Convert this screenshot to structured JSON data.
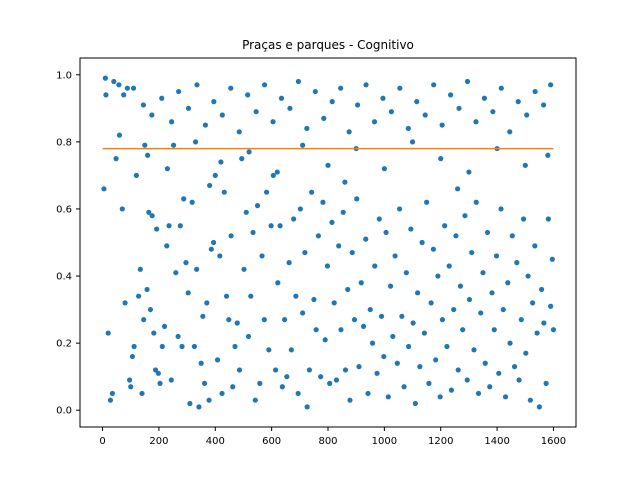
{
  "chart_data": {
    "type": "scatter",
    "title": "Praças e parques - Cognitivo",
    "xlabel": "",
    "ylabel": "",
    "xlim": [
      -80,
      1680
    ],
    "ylim": [
      -0.05,
      1.05
    ],
    "x_ticks": [
      0,
      200,
      400,
      600,
      800,
      1000,
      1200,
      1400,
      1600
    ],
    "x_tick_labels": [
      "0",
      "200",
      "400",
      "600",
      "800",
      "1000",
      "1200",
      "1400",
      "1600"
    ],
    "y_ticks": [
      0.0,
      0.2,
      0.4,
      0.6,
      0.8,
      1.0
    ],
    "y_tick_labels": [
      "0.0",
      "0.2",
      "0.4",
      "0.6",
      "0.8",
      "1.0"
    ],
    "grid": false,
    "series": [
      {
        "kind": "scatter",
        "color": "#1f77b4",
        "points": [
          [
            5,
            0.66
          ],
          [
            12,
            0.94
          ],
          [
            20,
            0.23
          ],
          [
            28,
            0.03
          ],
          [
            35,
            0.05
          ],
          [
            48,
            0.75
          ],
          [
            58,
            0.97
          ],
          [
            70,
            0.6
          ],
          [
            80,
            0.32
          ],
          [
            88,
            0.96
          ],
          [
            96,
            0.09
          ],
          [
            100,
            0.07
          ],
          [
            106,
            0.16
          ],
          [
            112,
            0.19
          ],
          [
            120,
            0.7
          ],
          [
            128,
            0.34
          ],
          [
            134,
            0.42
          ],
          [
            140,
            0.05
          ],
          [
            146,
            0.27
          ],
          [
            150,
            0.79
          ],
          [
            158,
            0.36
          ],
          [
            164,
            0.59
          ],
          [
            170,
            0.3
          ],
          [
            176,
            0.58
          ],
          [
            182,
            0.23
          ],
          [
            188,
            0.12
          ],
          [
            192,
            0.54
          ],
          [
            198,
            0.11
          ],
          [
            204,
            0.08
          ],
          [
            212,
            0.19
          ],
          [
            220,
            0.25
          ],
          [
            228,
            0.49
          ],
          [
            236,
            0.55
          ],
          [
            244,
            0.09
          ],
          [
            252,
            0.79
          ],
          [
            260,
            0.41
          ],
          [
            268,
            0.22
          ],
          [
            276,
            0.55
          ],
          [
            282,
            0.19
          ],
          [
            288,
            0.63
          ],
          [
            296,
            0.44
          ],
          [
            304,
            0.35
          ],
          [
            310,
            0.02
          ],
          [
            318,
            0.62
          ],
          [
            326,
            0.19
          ],
          [
            334,
            0.42
          ],
          [
            342,
            0.01
          ],
          [
            350,
            0.14
          ],
          [
            356,
            0.28
          ],
          [
            362,
            0.08
          ],
          [
            370,
            0.32
          ],
          [
            378,
            0.03
          ],
          [
            386,
            0.48
          ],
          [
            394,
            0.5
          ],
          [
            400,
            0.7
          ],
          [
            408,
            0.15
          ],
          [
            416,
            0.46
          ],
          [
            424,
            0.05
          ],
          [
            432,
            0.65
          ],
          [
            440,
            0.34
          ],
          [
            448,
            0.27
          ],
          [
            456,
            0.52
          ],
          [
            462,
            0.07
          ],
          [
            470,
            0.19
          ],
          [
            478,
            0.26
          ],
          [
            486,
            0.12
          ],
          [
            494,
            0.75
          ],
          [
            502,
            0.42
          ],
          [
            510,
            0.59
          ],
          [
            518,
            0.22
          ],
          [
            526,
            0.34
          ],
          [
            534,
            0.53
          ],
          [
            542,
            0.03
          ],
          [
            550,
            0.61
          ],
          [
            558,
            0.08
          ],
          [
            566,
            0.46
          ],
          [
            574,
            0.27
          ],
          [
            582,
            0.65
          ],
          [
            590,
            0.18
          ],
          [
            598,
            0.55
          ],
          [
            606,
            0.7
          ],
          [
            614,
            0.12
          ],
          [
            622,
            0.38
          ],
          [
            630,
            0.55
          ],
          [
            638,
            0.07
          ],
          [
            646,
            0.27
          ],
          [
            654,
            0.1
          ],
          [
            662,
            0.44
          ],
          [
            670,
            0.18
          ],
          [
            678,
            0.57
          ],
          [
            686,
            0.34
          ],
          [
            694,
            0.05
          ],
          [
            702,
            0.6
          ],
          [
            710,
            0.29
          ],
          [
            718,
            0.47
          ],
          [
            726,
            0.01
          ],
          [
            734,
            0.12
          ],
          [
            742,
            0.65
          ],
          [
            750,
            0.33
          ],
          [
            758,
            0.24
          ],
          [
            766,
            0.52
          ],
          [
            774,
            0.1
          ],
          [
            782,
            0.62
          ],
          [
            790,
            0.21
          ],
          [
            798,
            0.43
          ],
          [
            806,
            0.08
          ],
          [
            814,
            0.56
          ],
          [
            822,
            0.32
          ],
          [
            830,
            0.09
          ],
          [
            838,
            0.49
          ],
          [
            846,
            0.24
          ],
          [
            854,
            0.59
          ],
          [
            862,
            0.12
          ],
          [
            870,
            0.36
          ],
          [
            878,
            0.03
          ],
          [
            886,
            0.47
          ],
          [
            894,
            0.27
          ],
          [
            902,
            0.63
          ],
          [
            910,
            0.13
          ],
          [
            918,
            0.38
          ],
          [
            926,
            0.25
          ],
          [
            934,
            0.51
          ],
          [
            942,
            0.05
          ],
          [
            950,
            0.3
          ],
          [
            958,
            0.2
          ],
          [
            966,
            0.43
          ],
          [
            974,
            0.11
          ],
          [
            982,
            0.57
          ],
          [
            990,
            0.28
          ],
          [
            998,
            0.16
          ],
          [
            1006,
            0.53
          ],
          [
            1014,
            0.04
          ],
          [
            1022,
            0.37
          ],
          [
            1030,
            0.22
          ],
          [
            1038,
            0.46
          ],
          [
            1046,
            0.14
          ],
          [
            1054,
            0.6
          ],
          [
            1062,
            0.28
          ],
          [
            1070,
            0.07
          ],
          [
            1078,
            0.41
          ],
          [
            1086,
            0.19
          ],
          [
            1094,
            0.54
          ],
          [
            1102,
            0.26
          ],
          [
            1110,
            0.02
          ],
          [
            1118,
            0.35
          ],
          [
            1126,
            0.13
          ],
          [
            1134,
            0.5
          ],
          [
            1142,
            0.23
          ],
          [
            1150,
            0.62
          ],
          [
            1158,
            0.08
          ],
          [
            1166,
            0.32
          ],
          [
            1174,
            0.48
          ],
          [
            1182,
            0.15
          ],
          [
            1190,
            0.4
          ],
          [
            1198,
            0.04
          ],
          [
            1206,
            0.27
          ],
          [
            1214,
            0.55
          ],
          [
            1222,
            0.19
          ],
          [
            1230,
            0.43
          ],
          [
            1238,
            0.06
          ],
          [
            1246,
            0.3
          ],
          [
            1254,
            0.52
          ],
          [
            1262,
            0.12
          ],
          [
            1270,
            0.37
          ],
          [
            1278,
            0.24
          ],
          [
            1286,
            0.58
          ],
          [
            1294,
            0.09
          ],
          [
            1302,
            0.33
          ],
          [
            1310,
            0.47
          ],
          [
            1318,
            0.18
          ],
          [
            1326,
            0.62
          ],
          [
            1334,
            0.05
          ],
          [
            1342,
            0.29
          ],
          [
            1350,
            0.41
          ],
          [
            1358,
            0.14
          ],
          [
            1366,
            0.53
          ],
          [
            1374,
            0.07
          ],
          [
            1382,
            0.35
          ],
          [
            1390,
            0.24
          ],
          [
            1398,
            0.46
          ],
          [
            1406,
            0.11
          ],
          [
            1414,
            0.6
          ],
          [
            1422,
            0.3
          ],
          [
            1430,
            0.04
          ],
          [
            1438,
            0.38
          ],
          [
            1446,
            0.2
          ],
          [
            1454,
            0.52
          ],
          [
            1462,
            0.13
          ],
          [
            1470,
            0.44
          ],
          [
            1478,
            0.09
          ],
          [
            1486,
            0.27
          ],
          [
            1494,
            0.57
          ],
          [
            1502,
            0.17
          ],
          [
            1510,
            0.4
          ],
          [
            1518,
            0.03
          ],
          [
            1526,
            0.32
          ],
          [
            1534,
            0.49
          ],
          [
            1542,
            0.23
          ],
          [
            1550,
            0.01
          ],
          [
            1558,
            0.36
          ],
          [
            1566,
            0.26
          ],
          [
            1574,
            0.08
          ],
          [
            1582,
            0.57
          ],
          [
            1590,
            0.31
          ],
          [
            1596,
            0.45
          ],
          [
            1600,
            0.24
          ],
          [
            10,
            0.99
          ],
          [
            40,
            0.98
          ],
          [
            75,
            0.94
          ],
          [
            110,
            0.96
          ],
          [
            145,
            0.91
          ],
          [
            175,
            0.88
          ],
          [
            210,
            0.93
          ],
          [
            245,
            0.86
          ],
          [
            270,
            0.95
          ],
          [
            305,
            0.9
          ],
          [
            335,
            0.97
          ],
          [
            365,
            0.85
          ],
          [
            395,
            0.92
          ],
          [
            425,
            0.88
          ],
          [
            455,
            0.96
          ],
          [
            485,
            0.83
          ],
          [
            515,
            0.94
          ],
          [
            545,
            0.89
          ],
          [
            575,
            0.97
          ],
          [
            605,
            0.86
          ],
          [
            635,
            0.93
          ],
          [
            665,
            0.9
          ],
          [
            695,
            0.98
          ],
          [
            725,
            0.84
          ],
          [
            755,
            0.95
          ],
          [
            785,
            0.87
          ],
          [
            815,
            0.92
          ],
          [
            845,
            0.96
          ],
          [
            875,
            0.83
          ],
          [
            905,
            0.91
          ],
          [
            935,
            0.97
          ],
          [
            965,
            0.86
          ],
          [
            995,
            0.93
          ],
          [
            1025,
            0.89
          ],
          [
            1055,
            0.96
          ],
          [
            1085,
            0.84
          ],
          [
            1115,
            0.92
          ],
          [
            1145,
            0.88
          ],
          [
            1175,
            0.97
          ],
          [
            1205,
            0.85
          ],
          [
            1235,
            0.94
          ],
          [
            1265,
            0.9
          ],
          [
            1295,
            0.98
          ],
          [
            1325,
            0.86
          ],
          [
            1355,
            0.93
          ],
          [
            1385,
            0.89
          ],
          [
            1415,
            0.96
          ],
          [
            1445,
            0.83
          ],
          [
            1475,
            0.92
          ],
          [
            1505,
            0.88
          ],
          [
            1535,
            0.95
          ],
          [
            1565,
            0.91
          ],
          [
            1590,
            0.97
          ],
          [
            60,
            0.82
          ],
          [
            160,
            0.76
          ],
          [
            230,
            0.72
          ],
          [
            330,
            0.8
          ],
          [
            420,
            0.74
          ],
          [
            520,
            0.77
          ],
          [
            620,
            0.71
          ],
          [
            710,
            0.79
          ],
          [
            800,
            0.73
          ],
          [
            900,
            0.78
          ],
          [
            1000,
            0.72
          ],
          [
            1100,
            0.8
          ],
          [
            1200,
            0.75
          ],
          [
            1300,
            0.71
          ],
          [
            1400,
            0.78
          ],
          [
            1500,
            0.73
          ],
          [
            1580,
            0.76
          ],
          [
            380,
            0.67
          ],
          [
            860,
            0.68
          ],
          [
            1260,
            0.66
          ]
        ]
      },
      {
        "kind": "line",
        "color": "#ff7f0e",
        "x": [
          0,
          1600
        ],
        "y": [
          0.78,
          0.78
        ]
      }
    ]
  }
}
